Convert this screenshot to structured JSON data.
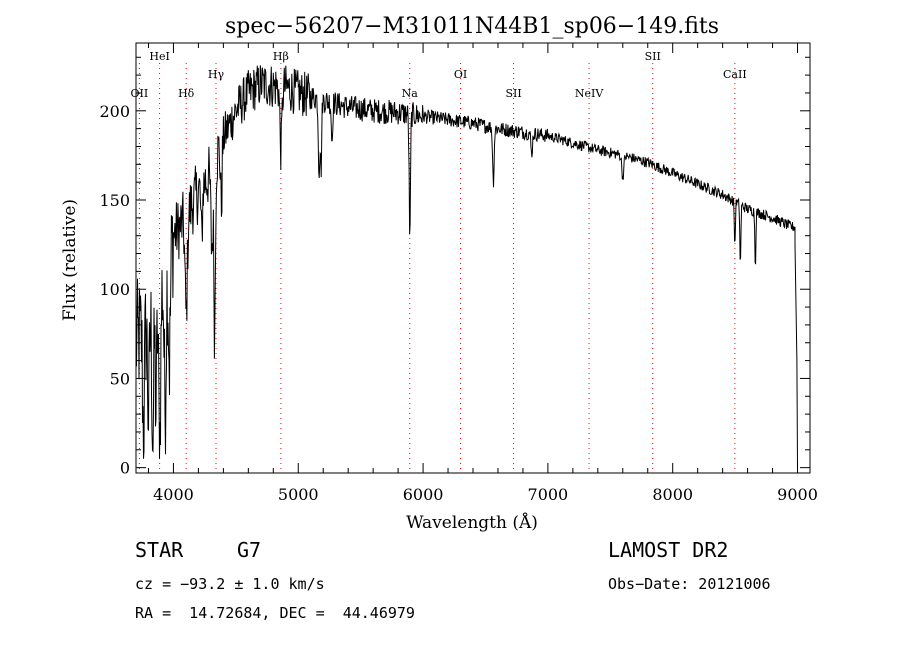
{
  "chart_data": {
    "type": "line",
    "title": "spec−56207−M31011N44B1_sp06−149.fits",
    "xlabel": "Wavelength (Å)",
    "ylabel": "Flux (relative)",
    "xlim": [
      3700,
      9100
    ],
    "ylim": [
      -3,
      238
    ],
    "xticks": [
      4000,
      5000,
      6000,
      7000,
      8000,
      9000
    ],
    "yticks": [
      0,
      50,
      100,
      150,
      200
    ],
    "grid": false,
    "line_color": "#000000",
    "marker_color": "#ff0000",
    "lines": [
      {
        "label": "OII",
        "wavelength": 3727,
        "level": 2
      },
      {
        "label": "HeI",
        "wavelength": 3889,
        "level": 0
      },
      {
        "label": "Hδ",
        "wavelength": 4102,
        "level": 3
      },
      {
        "label": "Hγ",
        "wavelength": 4341,
        "level": 1
      },
      {
        "label": "Hβ",
        "wavelength": 4861,
        "level": 0
      },
      {
        "label": "Na",
        "wavelength": 5893,
        "level": 3
      },
      {
        "label": "OI",
        "wavelength": 6300,
        "level": 1
      },
      {
        "label": "SII",
        "wavelength": 6725,
        "level": 2
      },
      {
        "label": "NeIV",
        "wavelength": 7330,
        "level": 2
      },
      {
        "label": "SII",
        "wavelength": 7840,
        "level": 0
      },
      {
        "label": "CaII",
        "wavelength": 8498,
        "level": 1
      }
    ],
    "continuum": [
      [
        3700,
        70
      ],
      [
        3800,
        80
      ],
      [
        3900,
        100
      ],
      [
        4000,
        130
      ],
      [
        4100,
        140
      ],
      [
        4200,
        155
      ],
      [
        4300,
        165
      ],
      [
        4400,
        185
      ],
      [
        4500,
        200
      ],
      [
        4600,
        210
      ],
      [
        4700,
        215
      ],
      [
        4800,
        214
      ],
      [
        4900,
        213
      ],
      [
        5000,
        210
      ],
      [
        5100,
        208
      ],
      [
        5200,
        206
      ],
      [
        5400,
        202
      ],
      [
        5600,
        200
      ],
      [
        5800,
        199
      ],
      [
        6000,
        197
      ],
      [
        6200,
        195
      ],
      [
        6400,
        193
      ],
      [
        6600,
        190
      ],
      [
        6800,
        188
      ],
      [
        7000,
        186
      ],
      [
        7200,
        182
      ],
      [
        7400,
        178
      ],
      [
        7600,
        175
      ],
      [
        7800,
        171
      ],
      [
        8000,
        165
      ],
      [
        8200,
        159
      ],
      [
        8400,
        153
      ],
      [
        8600,
        145
      ],
      [
        8800,
        140
      ],
      [
        8950,
        135
      ]
    ],
    "absorption": [
      {
        "wavelength": 3760,
        "depth": 55,
        "width": 7
      },
      {
        "wavelength": 3800,
        "depth": 50,
        "width": 7
      },
      {
        "wavelength": 3835,
        "depth": 70,
        "width": 7
      },
      {
        "wavelength": 3860,
        "depth": 60,
        "width": 6
      },
      {
        "wavelength": 3889,
        "depth": 85,
        "width": 8
      },
      {
        "wavelength": 3933,
        "depth": 75,
        "width": 8
      },
      {
        "wavelength": 3968,
        "depth": 60,
        "width": 8
      },
      {
        "wavelength": 4102,
        "depth": 55,
        "width": 9
      },
      {
        "wavelength": 4226,
        "depth": 30,
        "width": 6
      },
      {
        "wavelength": 4308,
        "depth": 45,
        "width": 8
      },
      {
        "wavelength": 4330,
        "depth": 95,
        "width": 6
      },
      {
        "wavelength": 4383,
        "depth": 35,
        "width": 6
      },
      {
        "wavelength": 4861,
        "depth": 35,
        "width": 8
      },
      {
        "wavelength": 5167,
        "depth": 40,
        "width": 6
      },
      {
        "wavelength": 5183,
        "depth": 38,
        "width": 5
      },
      {
        "wavelength": 5270,
        "depth": 22,
        "width": 5
      },
      {
        "wavelength": 5893,
        "depth": 40,
        "width": 6
      },
      {
        "wavelength": 5895,
        "depth": 33,
        "width": 4
      },
      {
        "wavelength": 6563,
        "depth": 30,
        "width": 6
      },
      {
        "wavelength": 6870,
        "depth": 12,
        "width": 6
      },
      {
        "wavelength": 7600,
        "depth": 12,
        "width": 8
      },
      {
        "wavelength": 8498,
        "depth": 25,
        "width": 4
      },
      {
        "wavelength": 8542,
        "depth": 35,
        "width": 4
      },
      {
        "wavelength": 8662,
        "depth": 30,
        "width": 4
      }
    ],
    "end_drop": [
      [
        8980,
        125
      ],
      [
        8995,
        60
      ],
      [
        9000,
        0
      ]
    ]
  },
  "info": {
    "object_type": "STAR",
    "subclass": "G7",
    "survey": "LAMOST DR2",
    "redshift": "cz = −93.2 ± 1.0 km/s",
    "obs_date": "Obs−Date: 20121006",
    "coords": "RA =  14.72684, DEC =  44.46979"
  }
}
